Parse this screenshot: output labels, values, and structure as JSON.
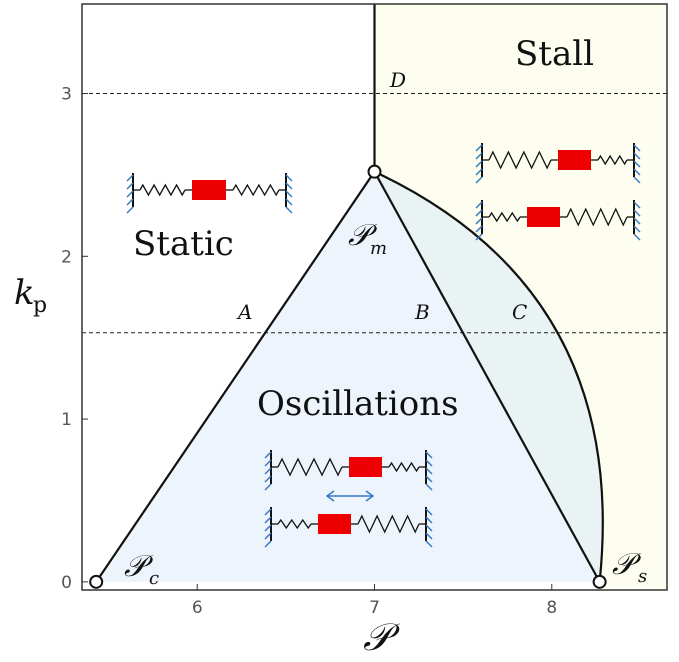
{
  "chart_data": {
    "type": "phase-diagram",
    "xlabel": "𝒫",
    "ylabel": "k",
    "ylabel_sub": "p",
    "x_ticks": [
      "6",
      "7",
      "8"
    ],
    "y_ticks": [
      "0",
      "1",
      "2",
      "3"
    ],
    "xlim": [
      5.35,
      8.65
    ],
    "ylim": [
      -0.05,
      3.55
    ],
    "grid": false,
    "regions": {
      "static": "Static",
      "stall": "Stall",
      "oscillations": "Oscillations"
    },
    "points": {
      "c": {
        "label": "𝒫",
        "sub": "c",
        "x": 5.43,
        "y": 0.0
      },
      "m": {
        "label": "𝒫",
        "sub": "m",
        "x": 7.0,
        "y": 2.52
      },
      "s": {
        "label": "𝒫",
        "sub": "s",
        "x": 8.27,
        "y": 0.0
      }
    },
    "reference_lines": [
      {
        "k": 3.0,
        "style": "dashed"
      },
      {
        "k": 1.53,
        "style": "dashed"
      }
    ],
    "markers": {
      "A": "A",
      "B": "B",
      "C": "C",
      "D": "D"
    },
    "colors": {
      "oscillation_fill": "#edf4fc",
      "stall_fill": "#fdfdf0",
      "between_fill": "#e9f3f3",
      "spring": "#111111",
      "mass": "#ee0000",
      "wall_hatch": "#3a78c8",
      "arrow": "#3a78c8"
    }
  }
}
